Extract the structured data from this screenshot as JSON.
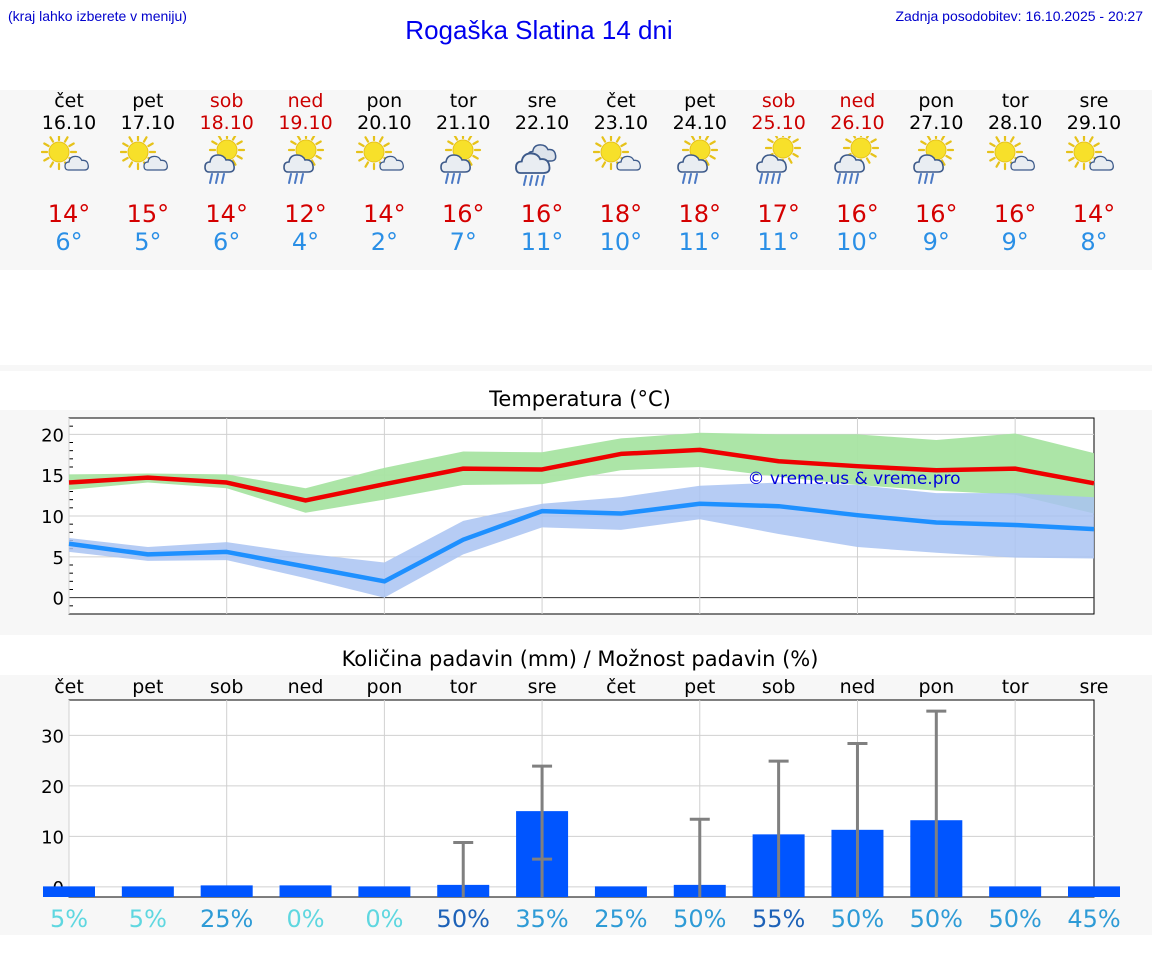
{
  "header": {
    "note": "(kraj lahko izberete v meniju)",
    "title": "Rogaška Slatina 14 dni",
    "updated": "Zadnja posodobitev: 16.10.2025 - 20:27"
  },
  "colors": {
    "weekend": "#cc0000",
    "tmax": "#d40000",
    "tmin": "#2a8fe6",
    "max_line": "#ee0000",
    "min_line": "#1e90ff",
    "max_band": "#a8e4a2",
    "min_band": "#a9c3f2",
    "bar": "#0055ff",
    "whisker": "#808080"
  },
  "days": [
    {
      "name": "čet",
      "date": "16.10",
      "weekend": false,
      "icon": "sun-cloud-icon",
      "max": "14°",
      "min": "6°"
    },
    {
      "name": "pet",
      "date": "17.10",
      "weekend": false,
      "icon": "sun-cloud-icon",
      "max": "15°",
      "min": "5°"
    },
    {
      "name": "sob",
      "date": "18.10",
      "weekend": true,
      "icon": "sun-rain-cloud-icon",
      "max": "14°",
      "min": "6°"
    },
    {
      "name": "ned",
      "date": "19.10",
      "weekend": true,
      "icon": "sun-rain-cloud-icon",
      "max": "12°",
      "min": "4°"
    },
    {
      "name": "pon",
      "date": "20.10",
      "weekend": false,
      "icon": "sun-cloud-icon",
      "max": "14°",
      "min": "2°"
    },
    {
      "name": "tor",
      "date": "21.10",
      "weekend": false,
      "icon": "sun-rain-cloud-icon",
      "max": "16°",
      "min": "7°"
    },
    {
      "name": "sre",
      "date": "22.10",
      "weekend": false,
      "icon": "rain-cloud-icon",
      "max": "16°",
      "min": "11°"
    },
    {
      "name": "čet",
      "date": "23.10",
      "weekend": false,
      "icon": "sun-cloud-icon",
      "max": "18°",
      "min": "10°"
    },
    {
      "name": "pet",
      "date": "24.10",
      "weekend": false,
      "icon": "sun-rain-cloud-icon",
      "max": "18°",
      "min": "11°"
    },
    {
      "name": "sob",
      "date": "25.10",
      "weekend": true,
      "icon": "sun-heavy-rain-icon",
      "max": "17°",
      "min": "11°"
    },
    {
      "name": "ned",
      "date": "26.10",
      "weekend": true,
      "icon": "sun-heavy-rain-icon",
      "max": "16°",
      "min": "10°"
    },
    {
      "name": "pon",
      "date": "27.10",
      "weekend": false,
      "icon": "sun-rain-cloud-icon",
      "max": "16°",
      "min": "9°"
    },
    {
      "name": "tor",
      "date": "28.10",
      "weekend": false,
      "icon": "sun-cloud-icon",
      "max": "16°",
      "min": "9°"
    },
    {
      "name": "sre",
      "date": "29.10",
      "weekend": false,
      "icon": "sun-cloud-icon",
      "max": "14°",
      "min": "8°"
    }
  ],
  "chart_data": [
    {
      "type": "line",
      "title": "Temperatura (°C)",
      "xlabel": "",
      "ylabel": "",
      "ylim": [
        -2,
        22
      ],
      "yticks": [
        0,
        5,
        10,
        15,
        20
      ],
      "ytick_labels": [
        "0",
        "5",
        "10",
        "15",
        "20"
      ],
      "grid": true,
      "watermark": "© vreme.us & vreme.pro",
      "series": [
        {
          "name": "max",
          "values": [
            14.1,
            14.7,
            14.1,
            11.9,
            13.9,
            15.8,
            15.7,
            17.6,
            18.1,
            16.7,
            16.1,
            15.6,
            15.8,
            14.0
          ],
          "band_low": [
            13.2,
            14.1,
            13.4,
            10.4,
            12.0,
            13.8,
            13.9,
            15.6,
            16.0,
            14.8,
            13.8,
            13.1,
            12.6,
            10.3
          ],
          "band_high": [
            15.1,
            15.2,
            15.1,
            13.4,
            15.9,
            17.9,
            17.8,
            19.5,
            20.2,
            20.0,
            20.0,
            19.3,
            20.1,
            17.7
          ]
        },
        {
          "name": "min",
          "values": [
            6.6,
            5.3,
            5.6,
            3.8,
            2.0,
            7.1,
            10.6,
            10.3,
            11.5,
            11.2,
            10.1,
            9.2,
            8.9,
            8.4
          ],
          "band_low": [
            5.6,
            4.5,
            4.6,
            2.4,
            0.0,
            5.3,
            8.6,
            8.3,
            9.6,
            7.8,
            6.2,
            5.5,
            4.9,
            4.8
          ],
          "band_high": [
            7.3,
            6.2,
            6.8,
            5.4,
            4.3,
            9.4,
            11.5,
            12.3,
            13.7,
            14.1,
            13.8,
            12.8,
            12.8,
            12.3
          ]
        }
      ]
    },
    {
      "type": "bar",
      "title": "Količina padavin (mm) / Možnost padavin (%)",
      "categories": [
        "čet",
        "pet",
        "sob",
        "ned",
        "pon",
        "tor",
        "sre",
        "čet",
        "pet",
        "sob",
        "ned",
        "pon",
        "tor",
        "sre"
      ],
      "ylim": [
        -2,
        37
      ],
      "yticks": [
        0,
        10,
        20,
        30
      ],
      "ytick_labels": [
        "0",
        "10",
        "20",
        "30"
      ],
      "grid": true,
      "values": [
        0.1,
        0.1,
        0.3,
        0.3,
        0.1,
        0.4,
        15.0,
        0.1,
        0.4,
        10.4,
        11.3,
        13.2,
        0.1,
        0.1
      ],
      "err_low": [
        0,
        0,
        0,
        0,
        0,
        0,
        5.5,
        0,
        0,
        0,
        0,
        0,
        0,
        0
      ],
      "err_high": [
        0.1,
        0.1,
        0.3,
        0.3,
        0.1,
        8.8,
        23.9,
        0.1,
        13.4,
        24.9,
        28.4,
        34.8,
        0.1,
        0.1
      ],
      "probabilities": [
        "5%",
        "5%",
        "25%",
        "0%",
        "0%",
        "50%",
        "35%",
        "25%",
        "50%",
        "55%",
        "50%",
        "50%",
        "50%",
        "45%"
      ],
      "probability_colors": [
        "#5fd7e0",
        "#5fd7e0",
        "#2e9bd6",
        "#5fd7e0",
        "#5fd7e0",
        "#1d62b8",
        "#2e9bd6",
        "#2e9bd6",
        "#2e9bd6",
        "#1d62b8",
        "#2e9bd6",
        "#2e9bd6",
        "#2e9bd6",
        "#2e9bd6"
      ]
    }
  ]
}
